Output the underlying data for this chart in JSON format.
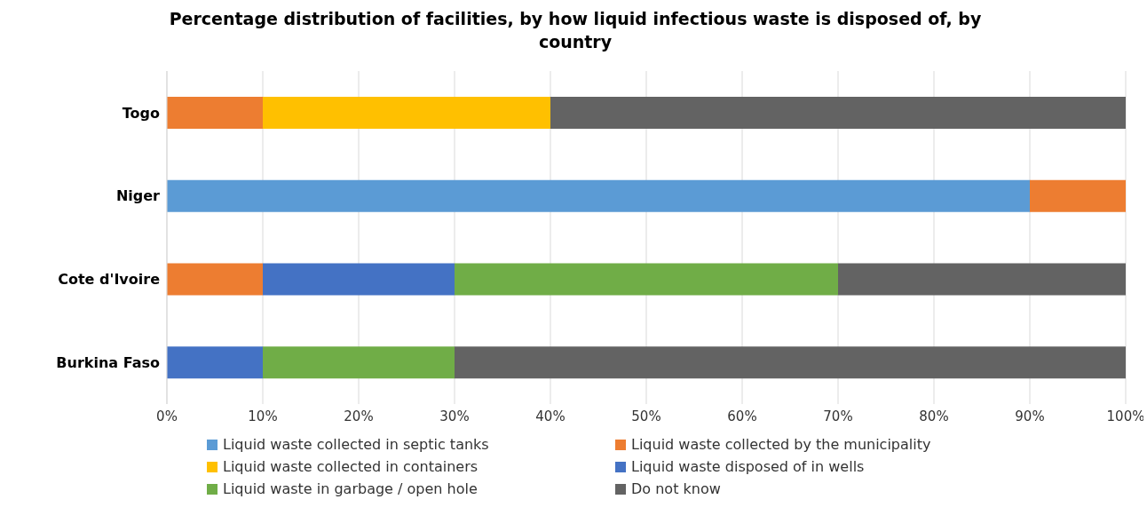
{
  "chart_data": {
    "type": "bar",
    "orientation": "horizontal",
    "stacked": true,
    "title": "Percentage distribution of facilities, by how liquid infectious waste is disposed of, by country",
    "categories": [
      "Togo",
      "Niger",
      "Cote d'Ivoire",
      "Burkina Faso"
    ],
    "series": [
      {
        "name": "Liquid waste collected in septic tanks",
        "color": "#5b9bd5",
        "values": [
          null,
          90,
          null,
          null
        ]
      },
      {
        "name": "Liquid waste collected by the municipality",
        "color": "#ed7d31",
        "values": [
          10,
          10,
          10,
          null
        ]
      },
      {
        "name": "Liquid waste collected in containers",
        "color": "#ffc000",
        "values": [
          30,
          null,
          null,
          null
        ]
      },
      {
        "name": "Liquid waste disposed of in wells",
        "color": "#4472c4",
        "values": [
          null,
          null,
          20,
          10
        ]
      },
      {
        "name": "Liquid waste in garbage / open hole",
        "color": "#70ad47",
        "values": [
          null,
          null,
          40,
          20
        ]
      },
      {
        "name": "Do not know",
        "color": "#636363",
        "values": [
          60,
          null,
          30,
          70
        ]
      }
    ],
    "xlim": [
      0,
      100
    ],
    "xticks": [
      {
        "value": 0,
        "label": "0%"
      },
      {
        "value": 10,
        "label": "10%"
      },
      {
        "value": 20,
        "label": "20%"
      },
      {
        "value": 30,
        "label": "30%"
      },
      {
        "value": 40,
        "label": "40%"
      },
      {
        "value": 50,
        "label": "50%"
      },
      {
        "value": 60,
        "label": "60%"
      },
      {
        "value": 70,
        "label": "70%"
      },
      {
        "value": 80,
        "label": "80%"
      },
      {
        "value": 90,
        "label": "90%"
      },
      {
        "value": 100,
        "label": "100%"
      }
    ],
    "grid": "x",
    "legend": "bottom"
  }
}
